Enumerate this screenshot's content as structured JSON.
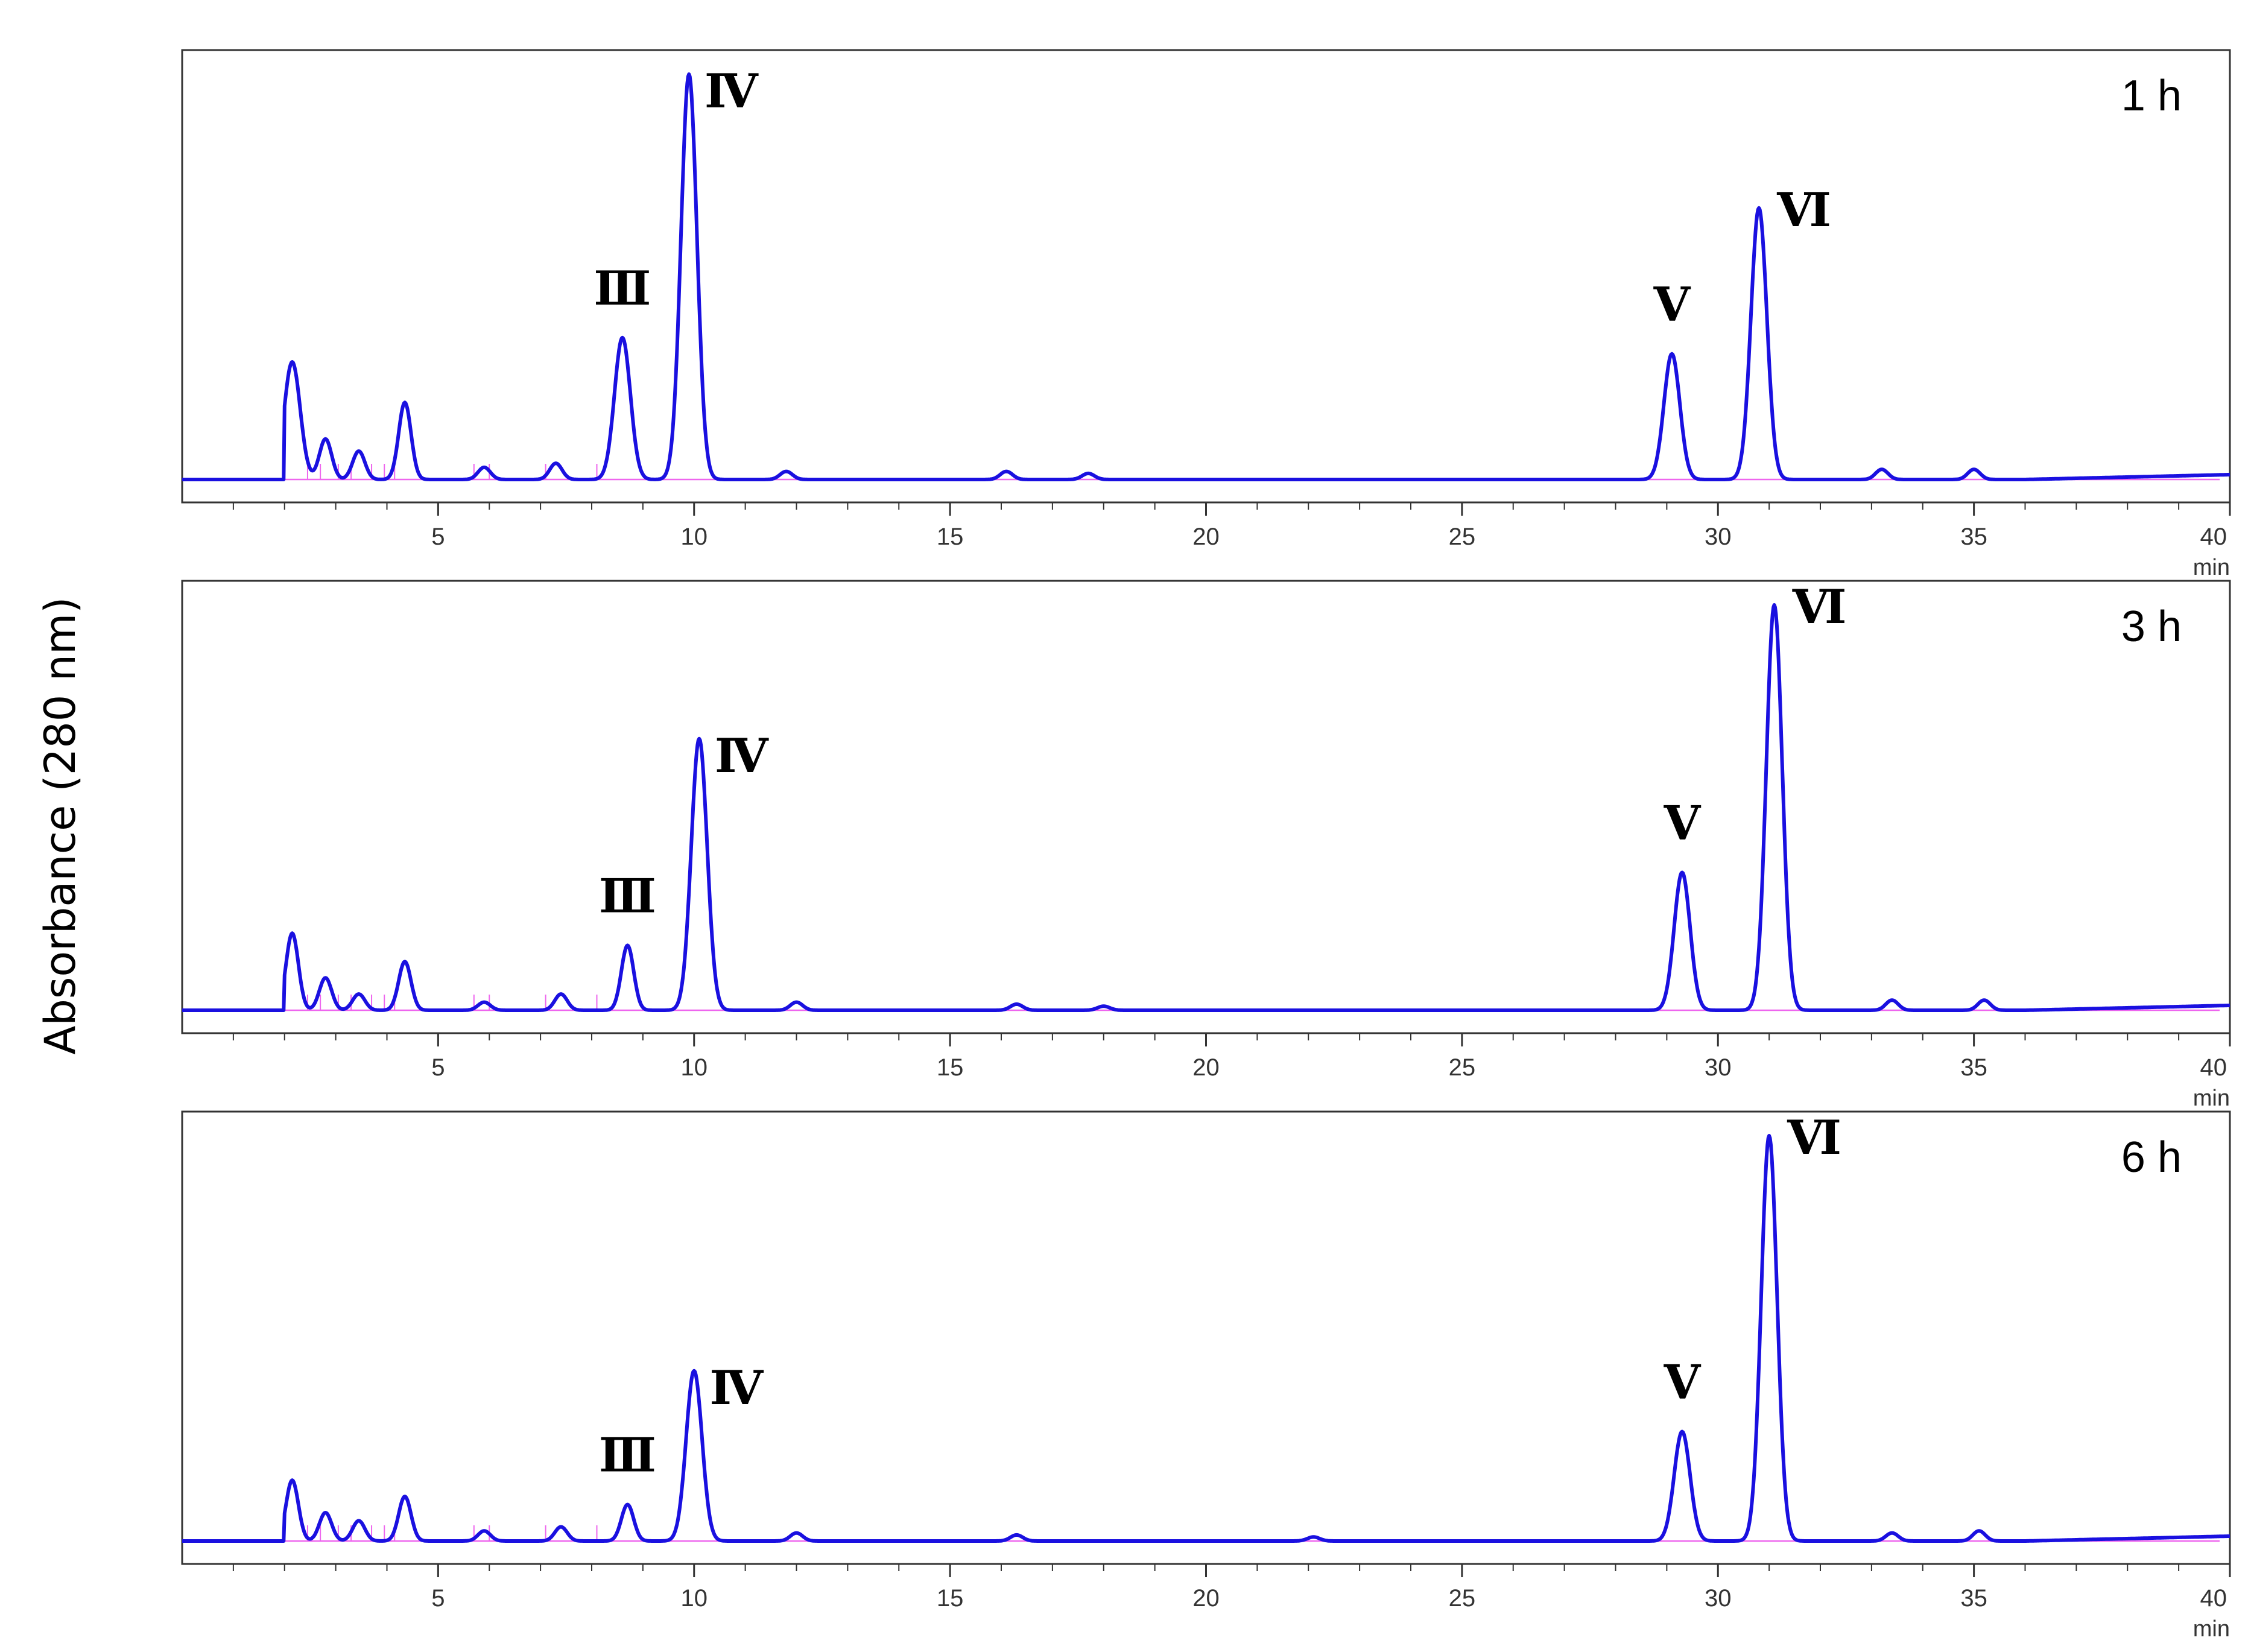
{
  "ylabel": "Absorbance (280 nm)",
  "chart_data": [
    {
      "type": "line",
      "panel_label": "1 h",
      "xlabel": "min",
      "xlim": [
        0,
        40
      ],
      "x_ticks": [
        5,
        10,
        15,
        20,
        25,
        30,
        35,
        40
      ],
      "y_ticks": [],
      "grid": false,
      "series": [
        {
          "color": "#1a10e0"
        }
      ],
      "peaks": [
        {
          "x": 2.15,
          "y": 0.29
        },
        {
          "x": 2.8,
          "y": 0.1
        },
        {
          "x": 3.45,
          "y": 0.07
        },
        {
          "x": 4.35,
          "y": 0.19
        },
        {
          "x": 5.9,
          "y": 0.03
        },
        {
          "x": 7.3,
          "y": 0.04
        },
        {
          "x": 8.6,
          "y": 0.35,
          "label": "Ⅲ"
        },
        {
          "x": 9.9,
          "y": 1.0,
          "label": "Ⅳ"
        },
        {
          "x": 11.8,
          "y": 0.02
        },
        {
          "x": 16.1,
          "y": 0.02
        },
        {
          "x": 17.7,
          "y": 0.015
        },
        {
          "x": 29.1,
          "y": 0.31,
          "label": "Ⅴ"
        },
        {
          "x": 30.8,
          "y": 0.67,
          "label": "Ⅵ"
        },
        {
          "x": 33.2,
          "y": 0.025
        },
        {
          "x": 35.0,
          "y": 0.025
        }
      ]
    },
    {
      "type": "line",
      "panel_label": "3 h",
      "xlabel": "min",
      "xlim": [
        0,
        40
      ],
      "x_ticks": [
        5,
        10,
        15,
        20,
        25,
        30,
        35,
        40
      ],
      "y_ticks": [],
      "grid": false,
      "series": [
        {
          "color": "#1a10e0"
        }
      ],
      "peaks": [
        {
          "x": 2.15,
          "y": 0.19
        },
        {
          "x": 2.8,
          "y": 0.08
        },
        {
          "x": 3.45,
          "y": 0.04
        },
        {
          "x": 4.35,
          "y": 0.12
        },
        {
          "x": 5.9,
          "y": 0.02
        },
        {
          "x": 7.4,
          "y": 0.04
        },
        {
          "x": 8.7,
          "y": 0.16,
          "label": "Ⅲ"
        },
        {
          "x": 10.1,
          "y": 0.67,
          "label": "Ⅳ"
        },
        {
          "x": 12.0,
          "y": 0.02
        },
        {
          "x": 16.3,
          "y": 0.015
        },
        {
          "x": 18.0,
          "y": 0.01
        },
        {
          "x": 29.3,
          "y": 0.34,
          "label": "Ⅴ"
        },
        {
          "x": 31.1,
          "y": 1.0,
          "label": "Ⅵ"
        },
        {
          "x": 33.4,
          "y": 0.025
        },
        {
          "x": 35.2,
          "y": 0.025
        }
      ]
    },
    {
      "type": "line",
      "panel_label": "6 h",
      "xlabel": "min",
      "xlim": [
        0,
        40
      ],
      "x_ticks": [
        5,
        10,
        15,
        20,
        25,
        30,
        35,
        40
      ],
      "y_ticks": [],
      "grid": false,
      "series": [
        {
          "color": "#1a10e0"
        }
      ],
      "peaks": [
        {
          "x": 2.15,
          "y": 0.15
        },
        {
          "x": 2.8,
          "y": 0.07
        },
        {
          "x": 3.45,
          "y": 0.05
        },
        {
          "x": 4.35,
          "y": 0.11
        },
        {
          "x": 5.9,
          "y": 0.025
        },
        {
          "x": 7.4,
          "y": 0.035
        },
        {
          "x": 8.7,
          "y": 0.09,
          "label": "Ⅲ"
        },
        {
          "x": 10.0,
          "y": 0.42,
          "label": "Ⅳ"
        },
        {
          "x": 12.0,
          "y": 0.02
        },
        {
          "x": 16.3,
          "y": 0.015
        },
        {
          "x": 22.1,
          "y": 0.01
        },
        {
          "x": 29.3,
          "y": 0.27,
          "label": "Ⅴ"
        },
        {
          "x": 31.0,
          "y": 1.0,
          "label": "Ⅵ"
        },
        {
          "x": 33.4,
          "y": 0.02
        },
        {
          "x": 35.1,
          "y": 0.025
        }
      ]
    }
  ]
}
